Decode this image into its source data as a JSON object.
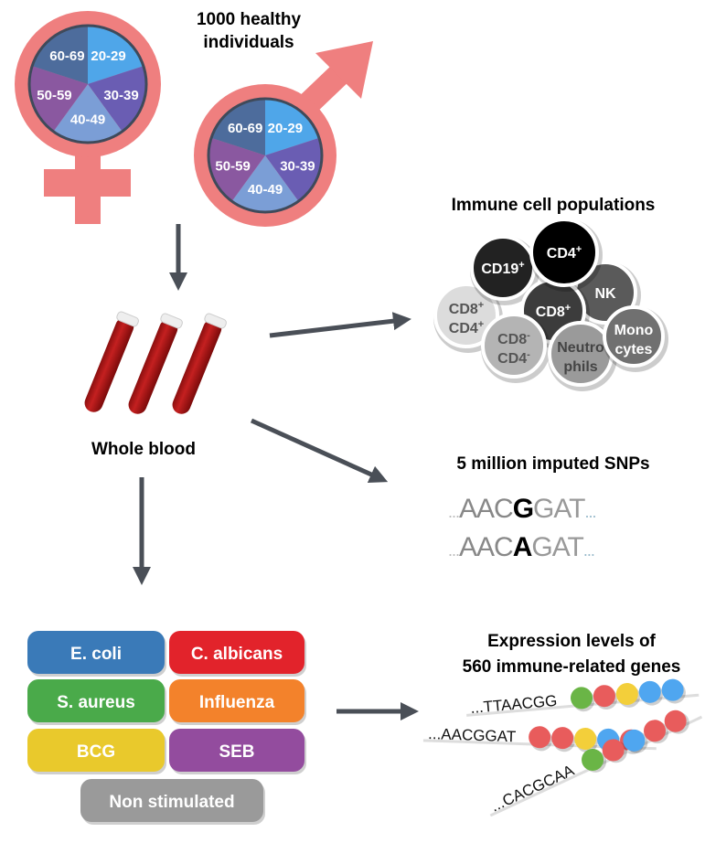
{
  "cohort": {
    "title_line1": "1000 healthy",
    "title_line2": "individuals",
    "age_groups": [
      "20-29",
      "30-39",
      "40-49",
      "50-59",
      "60-69"
    ],
    "age_colors": [
      "#4fa6e9",
      "#6a5db3",
      "#7b9ed6",
      "#8a58a0",
      "#4d6c9c"
    ],
    "symbol_color": "#ef7f7f"
  },
  "blood": {
    "label": "Whole blood"
  },
  "cells": {
    "title": "Immune cell populations",
    "items": [
      {
        "l1": "CD19",
        "sup": "+",
        "l2": "",
        "fill": "#222222",
        "text": "#ffffff"
      },
      {
        "l1": "CD4",
        "sup": "+",
        "l2": "",
        "fill": "#000000",
        "text": "#ffffff"
      },
      {
        "l1": "NK",
        "sup": "",
        "l2": "",
        "fill": "#5a5a5a",
        "text": "#ffffff"
      },
      {
        "l1": "CD8",
        "sup": "+",
        "l2": "",
        "fill": "#3c3c3c",
        "text": "#ffffff"
      },
      {
        "l1": "CD8",
        "sup": "+",
        "l2": "CD4",
        "sup2": "+",
        "fill": "#dcdcdc",
        "text": "#555555"
      },
      {
        "l1": "CD8",
        "sup": "-",
        "l2": "CD4",
        "sup2": "-",
        "fill": "#b4b4b4",
        "text": "#555555"
      },
      {
        "l1": "Neutro",
        "sup": "",
        "l2": "phils",
        "fill": "#9a9a9a",
        "text": "#444444"
      },
      {
        "l1": "Mono",
        "sup": "",
        "l2": "cytes",
        "fill": "#707070",
        "text": "#ffffff"
      }
    ]
  },
  "snps": {
    "title": "5 million imputed SNPs",
    "seq1": {
      "pre": "...",
      "a": "AAC",
      "snp": "G",
      "b": "GAT",
      "post": "..."
    },
    "seq2": {
      "pre": "...",
      "a": "AAC",
      "snp": "A",
      "b": "GAT",
      "post": "..."
    }
  },
  "stimuli": [
    {
      "label": "E. coli",
      "color": "#3a7ab8"
    },
    {
      "label": "C. albicans",
      "color": "#e2232b"
    },
    {
      "label": "S. aureus",
      "color": "#4aaa4a"
    },
    {
      "label": "Influenza",
      "color": "#f3822b"
    },
    {
      "label": "BCG",
      "color": "#e9c92c"
    },
    {
      "label": "SEB",
      "color": "#934c9e"
    },
    {
      "label": "Non stimulated",
      "color": "#9a9a9a"
    }
  ],
  "expression": {
    "title_line1": "Expression levels of",
    "title_line2": "560 immune-related genes",
    "rows": [
      {
        "seq": "...TTAACGG",
        "dots": [
          "#6ab546",
          "#e85c5c",
          "#f3cf3a",
          "#4fa6f0",
          "#4fa6f0"
        ]
      },
      {
        "seq": "...AACGGAT",
        "dots": [
          "#e85c5c",
          "#e85c5c",
          "#f3cf3a",
          "#4fa6f0",
          "#e85c5c"
        ]
      },
      {
        "seq": "...CACGCAA",
        "dots": [
          "#6ab546",
          "#e85c5c",
          "#4fa6f0",
          "#e85c5c",
          "#e85c5c"
        ]
      }
    ]
  }
}
